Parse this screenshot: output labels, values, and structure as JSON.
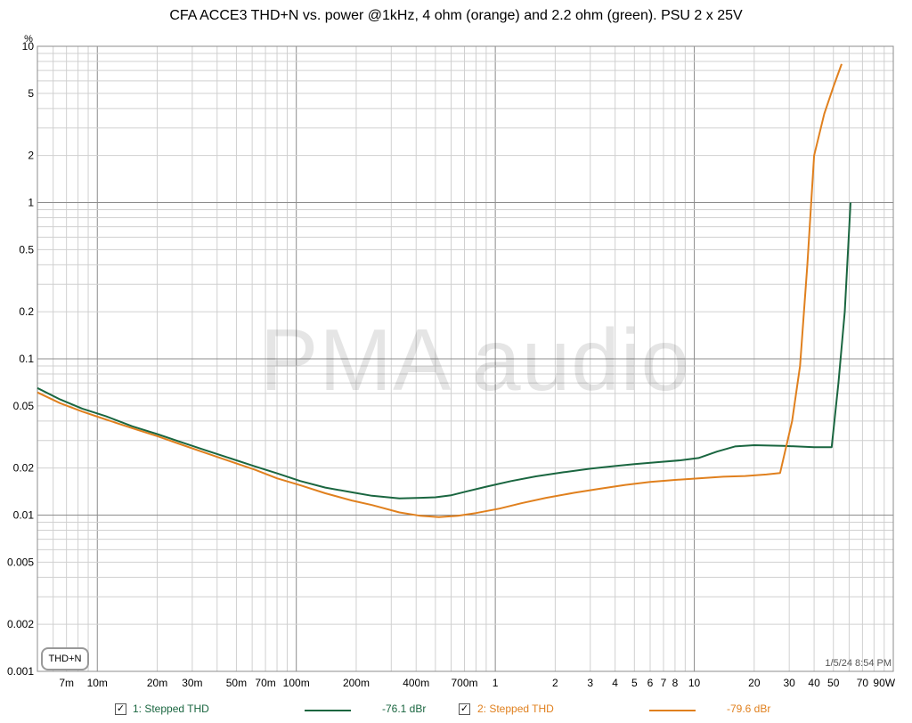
{
  "chart_data": {
    "type": "line",
    "title": "CFA ACCE3 THD+N vs. power @1kHz, 4 ohm (orange) and 2.2 ohm (green). PSU 2 x 25V",
    "ylabel": "%",
    "xunit": "W",
    "xscale": "log",
    "yscale": "log",
    "xlim": [
      0.005,
      100
    ],
    "ylim": [
      0.001,
      10
    ],
    "grid": true,
    "x_ticks": [
      {
        "value": 0.007,
        "label": "7m"
      },
      {
        "value": 0.01,
        "label": "10m"
      },
      {
        "value": 0.02,
        "label": "20m"
      },
      {
        "value": 0.03,
        "label": "30m"
      },
      {
        "value": 0.05,
        "label": "50m"
      },
      {
        "value": 0.07,
        "label": "70m"
      },
      {
        "value": 0.1,
        "label": "100m"
      },
      {
        "value": 0.2,
        "label": "200m"
      },
      {
        "value": 0.4,
        "label": "400m"
      },
      {
        "value": 0.7,
        "label": "700m"
      },
      {
        "value": 1,
        "label": "1"
      },
      {
        "value": 2,
        "label": "2"
      },
      {
        "value": 3,
        "label": "3"
      },
      {
        "value": 4,
        "label": "4"
      },
      {
        "value": 5,
        "label": "5"
      },
      {
        "value": 6,
        "label": "6"
      },
      {
        "value": 7,
        "label": "7"
      },
      {
        "value": 8,
        "label": "8"
      },
      {
        "value": 10,
        "label": "10"
      },
      {
        "value": 20,
        "label": "20"
      },
      {
        "value": 30,
        "label": "30"
      },
      {
        "value": 40,
        "label": "40"
      },
      {
        "value": 50,
        "label": "50"
      },
      {
        "value": 70,
        "label": "70"
      },
      {
        "value": 90,
        "label": "90W"
      }
    ],
    "y_ticks": [
      {
        "value": 10,
        "label": "10"
      },
      {
        "value": 5,
        "label": "5"
      },
      {
        "value": 2,
        "label": "2"
      },
      {
        "value": 1,
        "label": "1"
      },
      {
        "value": 0.5,
        "label": "0.5"
      },
      {
        "value": 0.2,
        "label": "0.2"
      },
      {
        "value": 0.1,
        "label": "0.1"
      },
      {
        "value": 0.05,
        "label": "0.05"
      },
      {
        "value": 0.02,
        "label": "0.02"
      },
      {
        "value": 0.01,
        "label": "0.01"
      },
      {
        "value": 0.005,
        "label": "0.005"
      },
      {
        "value": 0.002,
        "label": "0.002"
      },
      {
        "value": 0.001,
        "label": "0.001"
      }
    ],
    "series": [
      {
        "name": "1: Stepped THD",
        "color": "#1a6640",
        "readout": "-76.1 dBr",
        "points": [
          [
            0.005,
            0.065
          ],
          [
            0.0065,
            0.055
          ],
          [
            0.0084,
            0.048
          ],
          [
            0.011,
            0.043
          ],
          [
            0.015,
            0.037
          ],
          [
            0.02,
            0.033
          ],
          [
            0.027,
            0.029
          ],
          [
            0.035,
            0.026
          ],
          [
            0.047,
            0.023
          ],
          [
            0.062,
            0.0205
          ],
          [
            0.08,
            0.0185
          ],
          [
            0.105,
            0.0165
          ],
          [
            0.14,
            0.015
          ],
          [
            0.19,
            0.014
          ],
          [
            0.24,
            0.0133
          ],
          [
            0.33,
            0.0128
          ],
          [
            0.42,
            0.0129
          ],
          [
            0.5,
            0.013
          ],
          [
            0.6,
            0.0134
          ],
          [
            0.72,
            0.0142
          ],
          [
            0.9,
            0.0152
          ],
          [
            1.2,
            0.0165
          ],
          [
            1.6,
            0.0177
          ],
          [
            2.2,
            0.0188
          ],
          [
            3.0,
            0.0198
          ],
          [
            4.0,
            0.0206
          ],
          [
            5.0,
            0.0212
          ],
          [
            6.5,
            0.0218
          ],
          [
            8.5,
            0.0224
          ],
          [
            10.5,
            0.0232
          ],
          [
            13.0,
            0.0255
          ],
          [
            16.0,
            0.0275
          ],
          [
            20.0,
            0.028
          ],
          [
            28.0,
            0.0277
          ],
          [
            40.0,
            0.0272
          ],
          [
            49.0,
            0.0272
          ],
          [
            53.0,
            0.07
          ],
          [
            57.0,
            0.2
          ],
          [
            61.0,
            1.0
          ]
        ]
      },
      {
        "name": "2: Stepped THD",
        "color": "#e0801e",
        "readout": "-79.6 dBr",
        "points": [
          [
            0.005,
            0.061
          ],
          [
            0.0065,
            0.052
          ],
          [
            0.0084,
            0.046
          ],
          [
            0.011,
            0.041
          ],
          [
            0.015,
            0.036
          ],
          [
            0.02,
            0.032
          ],
          [
            0.027,
            0.028
          ],
          [
            0.035,
            0.025
          ],
          [
            0.047,
            0.022
          ],
          [
            0.062,
            0.0195
          ],
          [
            0.08,
            0.0172
          ],
          [
            0.105,
            0.0155
          ],
          [
            0.14,
            0.0138
          ],
          [
            0.19,
            0.0124
          ],
          [
            0.24,
            0.0116
          ],
          [
            0.33,
            0.0104
          ],
          [
            0.42,
            0.0099
          ],
          [
            0.52,
            0.0097
          ],
          [
            0.65,
            0.0099
          ],
          [
            0.8,
            0.0103
          ],
          [
            1.05,
            0.011
          ],
          [
            1.35,
            0.0119
          ],
          [
            1.8,
            0.0129
          ],
          [
            2.5,
            0.0139
          ],
          [
            3.3,
            0.0147
          ],
          [
            4.5,
            0.0156
          ],
          [
            6.0,
            0.0163
          ],
          [
            8.0,
            0.0168
          ],
          [
            10.5,
            0.0172
          ],
          [
            14.0,
            0.0176
          ],
          [
            18.0,
            0.0178
          ],
          [
            23.0,
            0.0182
          ],
          [
            27.0,
            0.0186
          ],
          [
            31.0,
            0.04
          ],
          [
            34.0,
            0.09
          ],
          [
            37.0,
            0.4
          ],
          [
            40.0,
            2.0
          ],
          [
            45.0,
            3.7
          ],
          [
            50.0,
            5.5
          ],
          [
            55.0,
            7.7
          ]
        ]
      }
    ]
  },
  "badge": "THD+N",
  "timestamp": "1/5/24 8:54 PM",
  "watermark": "PMA audio",
  "legend": [
    {
      "check": "✓",
      "label": "1: Stepped THD",
      "readout": "-76.1 dBr"
    },
    {
      "check": "✓",
      "label": "2: Stepped THD",
      "readout": "-79.6 dBr"
    }
  ]
}
